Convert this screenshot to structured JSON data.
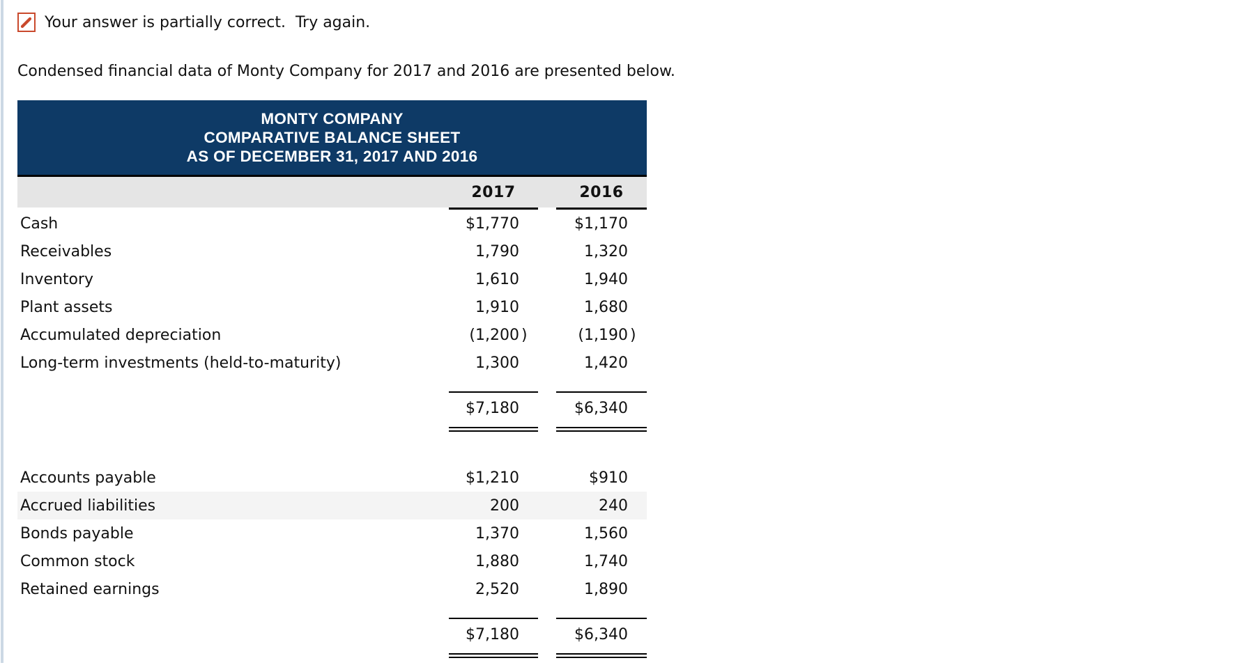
{
  "alert": {
    "message": "Your answer is partially correct.  Try again.",
    "icon": "pencil-icon",
    "accent_color": "#c9492c"
  },
  "intro": "Condensed financial data of Monty Company for 2017 and 2016 are presented below.",
  "balance_sheet": {
    "title_lines": [
      "MONTY COMPANY",
      "COMPARATIVE BALANCE SHEET",
      "AS OF DECEMBER 31, 2017 AND 2016"
    ],
    "columns": [
      "2017",
      "2016"
    ],
    "assets": {
      "rows": [
        {
          "label": "Cash",
          "v2017": "$1,770",
          "c2017": "",
          "v2016": "$1,170",
          "c2016": ""
        },
        {
          "label": "Receivables",
          "v2017": "1,790",
          "c2017": "",
          "v2016": "1,320",
          "c2016": ""
        },
        {
          "label": "Inventory",
          "v2017": "1,610",
          "c2017": "",
          "v2016": "1,940",
          "c2016": ""
        },
        {
          "label": "Plant assets",
          "v2017": "1,910",
          "c2017": "",
          "v2016": "1,680",
          "c2016": ""
        },
        {
          "label": "Accumulated depreciation",
          "v2017": "(1,200",
          "c2017": ")",
          "v2016": "(1,190",
          "c2016": ")"
        },
        {
          "label": "Long-term investments (held-to-maturity)",
          "v2017": "1,300",
          "c2017": "",
          "v2016": "1,420",
          "c2016": ""
        }
      ],
      "total": {
        "v2017": "$7,180",
        "v2016": "$6,340"
      }
    },
    "liabilities_equity": {
      "rows": [
        {
          "label": "Accounts payable",
          "v2017": "$1,210",
          "c2017": "",
          "v2016": "$910",
          "c2016": ""
        },
        {
          "label": "Accrued liabilities",
          "v2017": "200",
          "c2017": "",
          "v2016": "240",
          "c2016": "",
          "shaded": true
        },
        {
          "label": "Bonds payable",
          "v2017": "1,370",
          "c2017": "",
          "v2016": "1,560",
          "c2016": ""
        },
        {
          "label": "Common stock",
          "v2017": "1,880",
          "c2017": "",
          "v2016": "1,740",
          "c2016": ""
        },
        {
          "label": "Retained earnings",
          "v2017": "2,520",
          "c2017": "",
          "v2016": "1,890",
          "c2016": ""
        }
      ],
      "total": {
        "v2017": "$7,180",
        "v2016": "$6,340"
      }
    },
    "colors": {
      "header_bg": "#0e3a66",
      "header_text": "#ffffff",
      "column_header_bg": "#e5e5e5",
      "shaded_row_bg": "#f4f4f4",
      "rule_color": "#000000",
      "left_strip": "#ccd8e4"
    }
  }
}
